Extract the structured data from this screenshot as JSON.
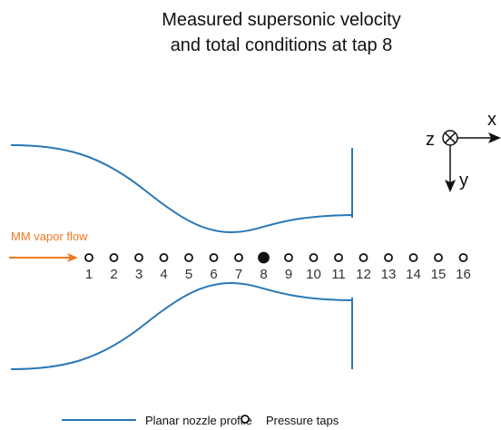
{
  "title": [
    "Measured supersonic velocity",
    "and total conditions at tap 8"
  ],
  "flow_label": "MM vapor flow",
  "axes": {
    "x": "x",
    "y": "y",
    "z": "z"
  },
  "taps": [
    "1",
    "2",
    "3",
    "4",
    "5",
    "6",
    "7",
    "8",
    "9",
    "10",
    "11",
    "12",
    "13",
    "14",
    "15",
    "16"
  ],
  "legend": {
    "profile": "Planar nozzle profile",
    "taps": "Pressure taps"
  }
}
